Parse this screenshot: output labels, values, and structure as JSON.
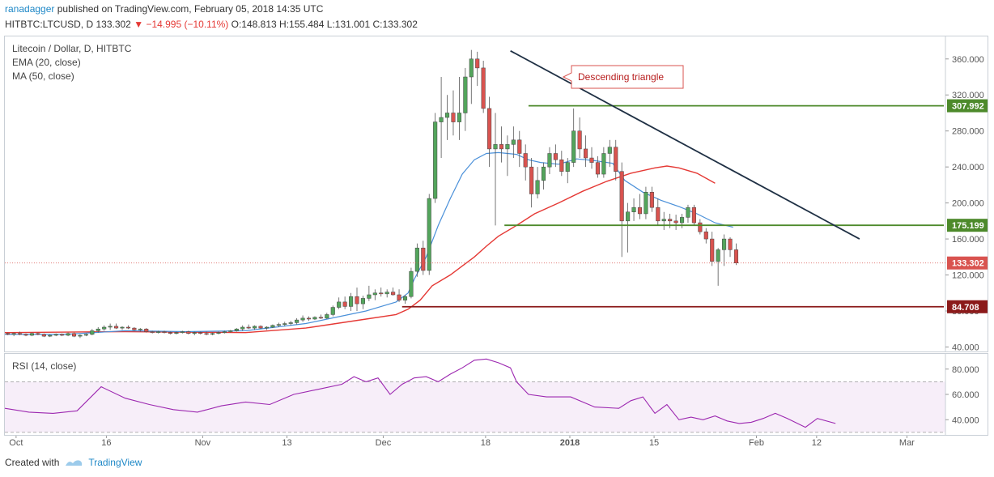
{
  "header": {
    "username": "ranadagger",
    "published": "published on TradingView.com, February 05, 2018 14:35 UTC",
    "symbol": "HITBTC:LTCUSD, D",
    "last": "133.302",
    "change": "−14.995 (−10.11%)",
    "o": "O:148.813",
    "h": "H:155.484",
    "l": "L:131.001",
    "c": "C:133.302"
  },
  "legend": {
    "title": "Litecoin / Dollar, D, HITBTC",
    "ema": "EMA (20, close)",
    "ma": "MA (50, close)"
  },
  "rsi_legend": "RSI (14, close)",
  "annotation": "Descending triangle",
  "footer": {
    "created_with": "Created with",
    "brand": "TradingView"
  },
  "colors": {
    "up": "#53a55c",
    "down": "#d9534f",
    "ema": "#4a90d9",
    "ma": "#e53935",
    "trend": "#1f3044",
    "support": "#4d8a2b",
    "support_low": "#8b1a1a",
    "rsi": "#9c27b0"
  },
  "chart_data": [
    {
      "type": "candlestick",
      "title": "Litecoin / Dollar, D, HITBTC",
      "ylim": [
        35,
        385
      ],
      "y_ticks": [
        "40.000",
        "80.000",
        "120.000",
        "160.000",
        "200.000",
        "240.000",
        "280.000",
        "320.000",
        "360.000"
      ],
      "x_ticks": [
        "Oct",
        "16",
        "Nov",
        "13",
        "Dec",
        "18",
        "2018",
        "15",
        "Feb",
        "12",
        "Mar"
      ],
      "x_tick_days": [
        2,
        17,
        33,
        47,
        63,
        80,
        94,
        108,
        125,
        135,
        150
      ],
      "x_range_days": [
        0,
        156
      ],
      "price_labels": [
        {
          "value": 307.992,
          "label": "307.992",
          "color": "#4d8a2b"
        },
        {
          "value": 175.199,
          "label": "175.199",
          "color": "#4d8a2b"
        },
        {
          "value": 133.302,
          "label": "133.302",
          "color": "#d9534f"
        },
        {
          "value": 84.708,
          "label": "84.708",
          "color": "#8b1a1a"
        }
      ],
      "lines": [
        {
          "name": "resistance",
          "from": [
            87,
            307.992
          ],
          "to": [
            156,
            307.992
          ]
        },
        {
          "name": "support",
          "from": [
            83,
            175.199
          ],
          "to": [
            156,
            175.199
          ]
        },
        {
          "name": "support-low",
          "from": [
            66,
            84.708
          ],
          "to": [
            156,
            84.708
          ]
        },
        {
          "name": "trendline",
          "from": [
            84,
            369
          ],
          "to": [
            142,
            160
          ]
        }
      ],
      "candles": [
        [
          0,
          55,
          56,
          53,
          54
        ],
        [
          1,
          54,
          56,
          52,
          55
        ],
        [
          2,
          55,
          57,
          53,
          54
        ],
        [
          3,
          54,
          55,
          52,
          53
        ],
        [
          4,
          53,
          56,
          52,
          55
        ],
        [
          5,
          55,
          56,
          53,
          54
        ],
        [
          6,
          54,
          55,
          51,
          52
        ],
        [
          7,
          52,
          54,
          51,
          53
        ],
        [
          8,
          53,
          55,
          52,
          54
        ],
        [
          9,
          54,
          55,
          52,
          53
        ],
        [
          10,
          53,
          56,
          52,
          55
        ],
        [
          11,
          55,
          56,
          51,
          52
        ],
        [
          12,
          52,
          54,
          50,
          53
        ],
        [
          13,
          53,
          55,
          52,
          54
        ],
        [
          14,
          54,
          60,
          53,
          58
        ],
        [
          15,
          58,
          62,
          56,
          60
        ],
        [
          16,
          60,
          64,
          58,
          62
        ],
        [
          17,
          62,
          66,
          59,
          63
        ],
        [
          18,
          63,
          66,
          60,
          61
        ],
        [
          19,
          61,
          63,
          59,
          62
        ],
        [
          20,
          62,
          64,
          60,
          61
        ],
        [
          21,
          61,
          62,
          58,
          59
        ],
        [
          22,
          59,
          61,
          57,
          60
        ],
        [
          23,
          60,
          61,
          56,
          57
        ],
        [
          24,
          57,
          58,
          55,
          56
        ],
        [
          25,
          56,
          58,
          55,
          57
        ],
        [
          26,
          57,
          58,
          55,
          56
        ],
        [
          27,
          56,
          57,
          54,
          55
        ],
        [
          28,
          55,
          57,
          54,
          56
        ],
        [
          29,
          56,
          58,
          55,
          57
        ],
        [
          30,
          57,
          58,
          54,
          55
        ],
        [
          31,
          55,
          57,
          53,
          56
        ],
        [
          32,
          56,
          57,
          54,
          55
        ],
        [
          33,
          55,
          57,
          53,
          54
        ],
        [
          34,
          54,
          56,
          53,
          55
        ],
        [
          35,
          55,
          57,
          54,
          56
        ],
        [
          36,
          56,
          58,
          55,
          57
        ],
        [
          37,
          57,
          59,
          56,
          58
        ],
        [
          38,
          58,
          61,
          57,
          60
        ],
        [
          39,
          60,
          64,
          58,
          62
        ],
        [
          40,
          62,
          65,
          60,
          61
        ],
        [
          41,
          61,
          64,
          59,
          63
        ],
        [
          42,
          63,
          64,
          60,
          61
        ],
        [
          43,
          61,
          63,
          59,
          62
        ],
        [
          44,
          62,
          65,
          61,
          64
        ],
        [
          45,
          64,
          67,
          62,
          65
        ],
        [
          46,
          65,
          68,
          63,
          66
        ],
        [
          47,
          66,
          69,
          64,
          67
        ],
        [
          48,
          67,
          72,
          65,
          70
        ],
        [
          49,
          70,
          75,
          68,
          72
        ],
        [
          50,
          72,
          74,
          69,
          71
        ],
        [
          51,
          71,
          74,
          70,
          73
        ],
        [
          52,
          73,
          76,
          71,
          72
        ],
        [
          53,
          72,
          78,
          71,
          76
        ],
        [
          54,
          76,
          86,
          74,
          84
        ],
        [
          55,
          84,
          95,
          82,
          90
        ],
        [
          56,
          90,
          96,
          82,
          85
        ],
        [
          57,
          85,
          100,
          80,
          96
        ],
        [
          58,
          96,
          106,
          80,
          88
        ],
        [
          59,
          88,
          97,
          82,
          94
        ],
        [
          60,
          94,
          108,
          91,
          98
        ],
        [
          61,
          98,
          104,
          92,
          100
        ],
        [
          62,
          100,
          106,
          96,
          99
        ],
        [
          63,
          99,
          104,
          95,
          101
        ],
        [
          64,
          101,
          106,
          97,
          98
        ],
        [
          65,
          98,
          104,
          90,
          92
        ],
        [
          66,
          92,
          98,
          88,
          96
        ],
        [
          67,
          96,
          128,
          94,
          124
        ],
        [
          68,
          124,
          155,
          118,
          150
        ],
        [
          69,
          150,
          158,
          120,
          125
        ],
        [
          70,
          125,
          210,
          120,
          205
        ],
        [
          71,
          205,
          300,
          200,
          290
        ],
        [
          72,
          290,
          340,
          250,
          295
        ],
        [
          73,
          295,
          320,
          270,
          300
        ],
        [
          74,
          300,
          325,
          275,
          290
        ],
        [
          75,
          290,
          340,
          270,
          300
        ],
        [
          76,
          300,
          350,
          280,
          340
        ],
        [
          77,
          340,
          370,
          310,
          360
        ],
        [
          78,
          360,
          368,
          330,
          350
        ],
        [
          79,
          350,
          358,
          300,
          305
        ],
        [
          80,
          305,
          318,
          240,
          260
        ],
        [
          81,
          260,
          300,
          175,
          265
        ],
        [
          82,
          265,
          285,
          245,
          260
        ],
        [
          83,
          260,
          275,
          230,
          265
        ],
        [
          84,
          265,
          285,
          250,
          270
        ],
        [
          85,
          270,
          280,
          240,
          255
        ],
        [
          86,
          255,
          265,
          225,
          240
        ],
        [
          87,
          240,
          250,
          195,
          210
        ],
        [
          88,
          210,
          240,
          205,
          225
        ],
        [
          89,
          225,
          245,
          215,
          240
        ],
        [
          90,
          240,
          262,
          232,
          255
        ],
        [
          91,
          255,
          265,
          240,
          248
        ],
        [
          92,
          248,
          258,
          230,
          235
        ],
        [
          93,
          235,
          250,
          222,
          245
        ],
        [
          94,
          245,
          305,
          240,
          280
        ],
        [
          95,
          280,
          295,
          250,
          260
        ],
        [
          96,
          260,
          275,
          240,
          250
        ],
        [
          97,
          250,
          262,
          238,
          245
        ],
        [
          98,
          245,
          252,
          228,
          232
        ],
        [
          99,
          232,
          262,
          228,
          255
        ],
        [
          100,
          255,
          270,
          240,
          262
        ],
        [
          101,
          262,
          270,
          225,
          235
        ],
        [
          102,
          235,
          245,
          140,
          180
        ],
        [
          103,
          180,
          200,
          145,
          190
        ],
        [
          104,
          190,
          205,
          180,
          195
        ],
        [
          105,
          195,
          210,
          182,
          188
        ],
        [
          106,
          188,
          218,
          182,
          212
        ],
        [
          107,
          212,
          218,
          190,
          195
        ],
        [
          108,
          195,
          205,
          175,
          180
        ],
        [
          109,
          180,
          190,
          170,
          182
        ],
        [
          110,
          182,
          188,
          172,
          180
        ],
        [
          111,
          180,
          187,
          170,
          178
        ],
        [
          112,
          178,
          188,
          172,
          184
        ],
        [
          113,
          184,
          198,
          178,
          195
        ],
        [
          114,
          195,
          198,
          175,
          178
        ],
        [
          115,
          178,
          182,
          165,
          168
        ],
        [
          116,
          168,
          172,
          155,
          160
        ],
        [
          117,
          160,
          168,
          130,
          135
        ],
        [
          118,
          135,
          150,
          108,
          148
        ],
        [
          119,
          148,
          165,
          130,
          160
        ],
        [
          120,
          160,
          162,
          140,
          148
        ],
        [
          121,
          148,
          155,
          131,
          133.3
        ]
      ],
      "ema20": [
        [
          0,
          54
        ],
        [
          10,
          54
        ],
        [
          20,
          58
        ],
        [
          30,
          57
        ],
        [
          40,
          58
        ],
        [
          50,
          66
        ],
        [
          60,
          80
        ],
        [
          65,
          90
        ],
        [
          67,
          100
        ],
        [
          68,
          115
        ],
        [
          70,
          140
        ],
        [
          72,
          175
        ],
        [
          74,
          205
        ],
        [
          76,
          232
        ],
        [
          78,
          248
        ],
        [
          80,
          255
        ],
        [
          82,
          256
        ],
        [
          85,
          254
        ],
        [
          87,
          248
        ],
        [
          89,
          245
        ],
        [
          92,
          243
        ],
        [
          95,
          249
        ],
        [
          98,
          247
        ],
        [
          101,
          244
        ],
        [
          103,
          225
        ],
        [
          106,
          212
        ],
        [
          109,
          203
        ],
        [
          112,
          196
        ],
        [
          115,
          188
        ],
        [
          118,
          178
        ],
        [
          121,
          173
        ]
      ],
      "ma50": [
        [
          0,
          56
        ],
        [
          20,
          57
        ],
        [
          40,
          56
        ],
        [
          50,
          61
        ],
        [
          60,
          71
        ],
        [
          65,
          76
        ],
        [
          67,
          82
        ],
        [
          69,
          92
        ],
        [
          71,
          108
        ],
        [
          74,
          120
        ],
        [
          76,
          130
        ],
        [
          78,
          140
        ],
        [
          80,
          152
        ],
        [
          82,
          163
        ],
        [
          85,
          175
        ],
        [
          88,
          188
        ],
        [
          92,
          200
        ],
        [
          96,
          213
        ],
        [
          100,
          224
        ],
        [
          104,
          233
        ],
        [
          108,
          239
        ],
        [
          110,
          241
        ],
        [
          112,
          239
        ],
        [
          115,
          233
        ],
        [
          118,
          222
        ]
      ]
    },
    {
      "type": "line",
      "name": "rsi",
      "title": "RSI (14, close)",
      "ylim": [
        28,
        92
      ],
      "y_ticks": [
        "40.000",
        "60.000",
        "80.000"
      ],
      "band": [
        30,
        70
      ],
      "values": [
        [
          0,
          49
        ],
        [
          4,
          46
        ],
        [
          8,
          45
        ],
        [
          12,
          47
        ],
        [
          16,
          66
        ],
        [
          20,
          57
        ],
        [
          24,
          52
        ],
        [
          28,
          48
        ],
        [
          32,
          46
        ],
        [
          36,
          51
        ],
        [
          40,
          54
        ],
        [
          44,
          52
        ],
        [
          48,
          60
        ],
        [
          52,
          64
        ],
        [
          56,
          68
        ],
        [
          58,
          74
        ],
        [
          60,
          70
        ],
        [
          62,
          73
        ],
        [
          64,
          60
        ],
        [
          66,
          68
        ],
        [
          68,
          73
        ],
        [
          70,
          74
        ],
        [
          72,
          70
        ],
        [
          74,
          76
        ],
        [
          76,
          81
        ],
        [
          78,
          87
        ],
        [
          80,
          88
        ],
        [
          82,
          85
        ],
        [
          84,
          81
        ],
        [
          85,
          70
        ],
        [
          87,
          60
        ],
        [
          90,
          58
        ],
        [
          94,
          58
        ],
        [
          98,
          50
        ],
        [
          102,
          49
        ],
        [
          104,
          55
        ],
        [
          106,
          58
        ],
        [
          108,
          45
        ],
        [
          110,
          52
        ],
        [
          112,
          40
        ],
        [
          114,
          42
        ],
        [
          116,
          40
        ],
        [
          118,
          43
        ],
        [
          120,
          39
        ],
        [
          122,
          37
        ],
        [
          124,
          38
        ],
        [
          126,
          41
        ],
        [
          128,
          45
        ],
        [
          130,
          41
        ],
        [
          133,
          34
        ],
        [
          135,
          41
        ],
        [
          138,
          37
        ]
      ]
    }
  ]
}
